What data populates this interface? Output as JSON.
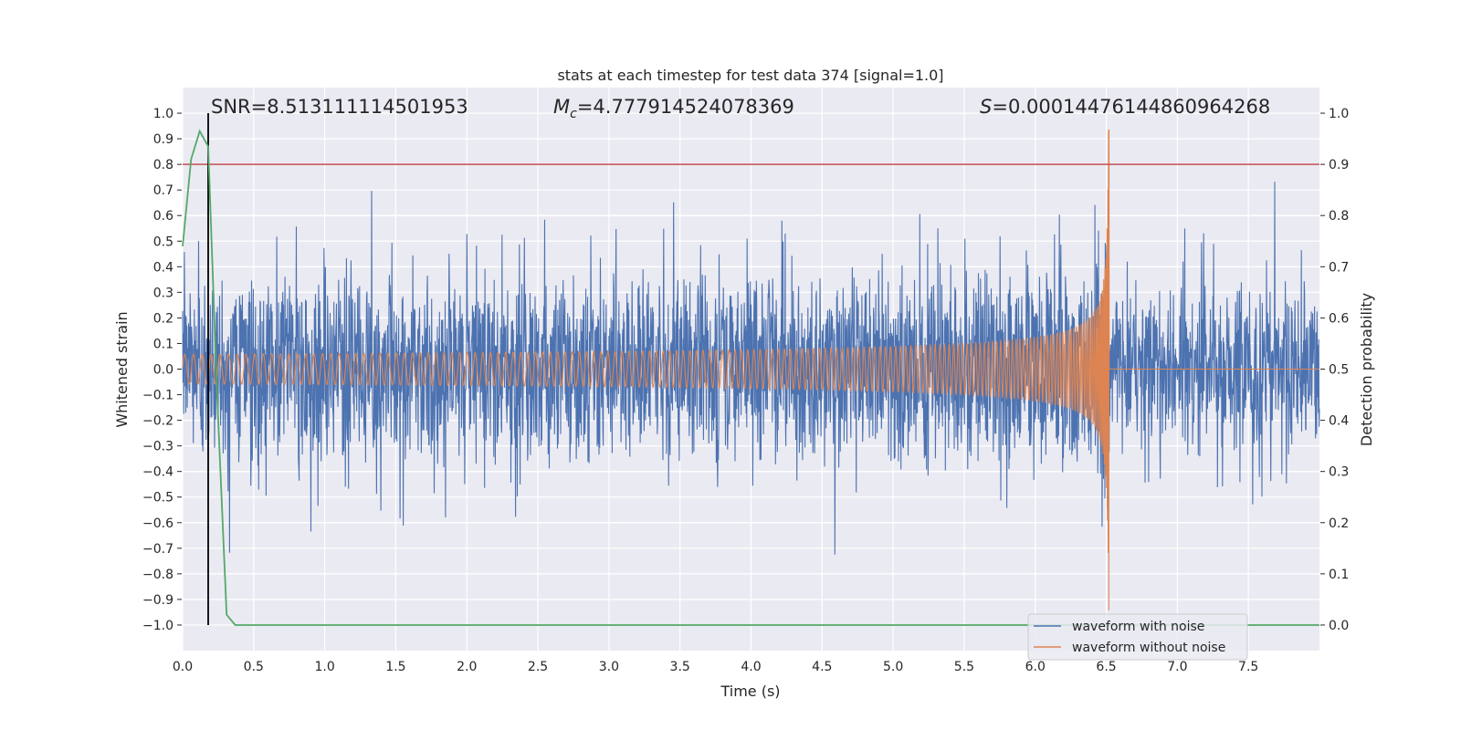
{
  "chart_data": {
    "type": "line",
    "title": "stats at each timestep for test data 374 [signal=1.0]",
    "xlabel": "Time (s)",
    "ylabel": "Whitened strain",
    "y2label": "Detection probability",
    "xlim": [
      0.0,
      8.0
    ],
    "ylim": [
      -1.1,
      1.1
    ],
    "y2lim": [
      -0.05,
      1.05
    ],
    "xticks": [
      0.0,
      0.5,
      1.0,
      1.5,
      2.0,
      2.5,
      3.0,
      3.5,
      4.0,
      4.5,
      5.0,
      5.5,
      6.0,
      6.5,
      7.0,
      7.5
    ],
    "xtick_labels": [
      "0.0",
      "0.5",
      "1.0",
      "1.5",
      "2.0",
      "2.5",
      "3.0",
      "3.5",
      "4.0",
      "4.5",
      "5.0",
      "5.5",
      "6.0",
      "6.5",
      "7.0",
      "7.5"
    ],
    "yticks": [
      1.0,
      0.9,
      0.8,
      0.7,
      0.6,
      0.5,
      0.4,
      0.3,
      0.2,
      0.1,
      0.0,
      -0.1,
      -0.2,
      -0.3,
      -0.4,
      -0.5,
      -0.6,
      -0.7,
      -0.8,
      -0.9,
      -1.0
    ],
    "ytick_labels": [
      "1.0",
      "0.9",
      "0.8",
      "0.7",
      "0.6",
      "0.5",
      "0.4",
      "0.3",
      "0.2",
      "0.1",
      "0.0",
      "−0.1",
      "−0.2",
      "−0.3",
      "−0.4",
      "−0.5",
      "−0.6",
      "−0.7",
      "−0.8",
      "−0.9",
      "−1.0"
    ],
    "y2ticks": [
      1.0,
      0.9,
      0.8,
      0.7,
      0.6,
      0.5,
      0.4,
      0.3,
      0.2,
      0.1,
      0.0
    ],
    "y2tick_labels": [
      "1.0",
      "0.9",
      "0.8",
      "0.7",
      "0.6",
      "0.5",
      "0.4",
      "0.3",
      "0.2",
      "0.1",
      "0.0"
    ],
    "annotations": {
      "snr": "SNR=8.513111114501953",
      "mc_prefix": "M",
      "mc_sub": "c",
      "mc_value": "=4.777914524078369",
      "s_prefix": "S",
      "s_value": "=0.00014476144860964268"
    },
    "merger_time": 6.52,
    "noise_amplitude": 0.38,
    "chirp_start_amplitude": 0.055,
    "chirp_peak_amplitude": 0.95,
    "threshold": {
      "value": 0.9,
      "axis": "right",
      "color": "#c44e52"
    },
    "detection_marker": {
      "x": 0.18,
      "color": "#000000"
    },
    "series": [
      {
        "name": "waveform with noise",
        "color": "#4c72b0",
        "axis": "left"
      },
      {
        "name": "waveform without noise",
        "color": "#dd8452",
        "axis": "left"
      },
      {
        "name": "detection probability",
        "color": "#55a868",
        "axis": "right",
        "x": [
          0.0,
          0.06,
          0.12,
          0.18,
          0.24,
          0.31,
          0.37,
          8.0
        ],
        "values": [
          0.74,
          0.91,
          0.965,
          0.935,
          0.47,
          0.02,
          0.0,
          0.0
        ]
      }
    ],
    "legend": {
      "position": "lower-right",
      "entries": [
        "waveform with noise",
        "waveform without noise"
      ]
    }
  }
}
